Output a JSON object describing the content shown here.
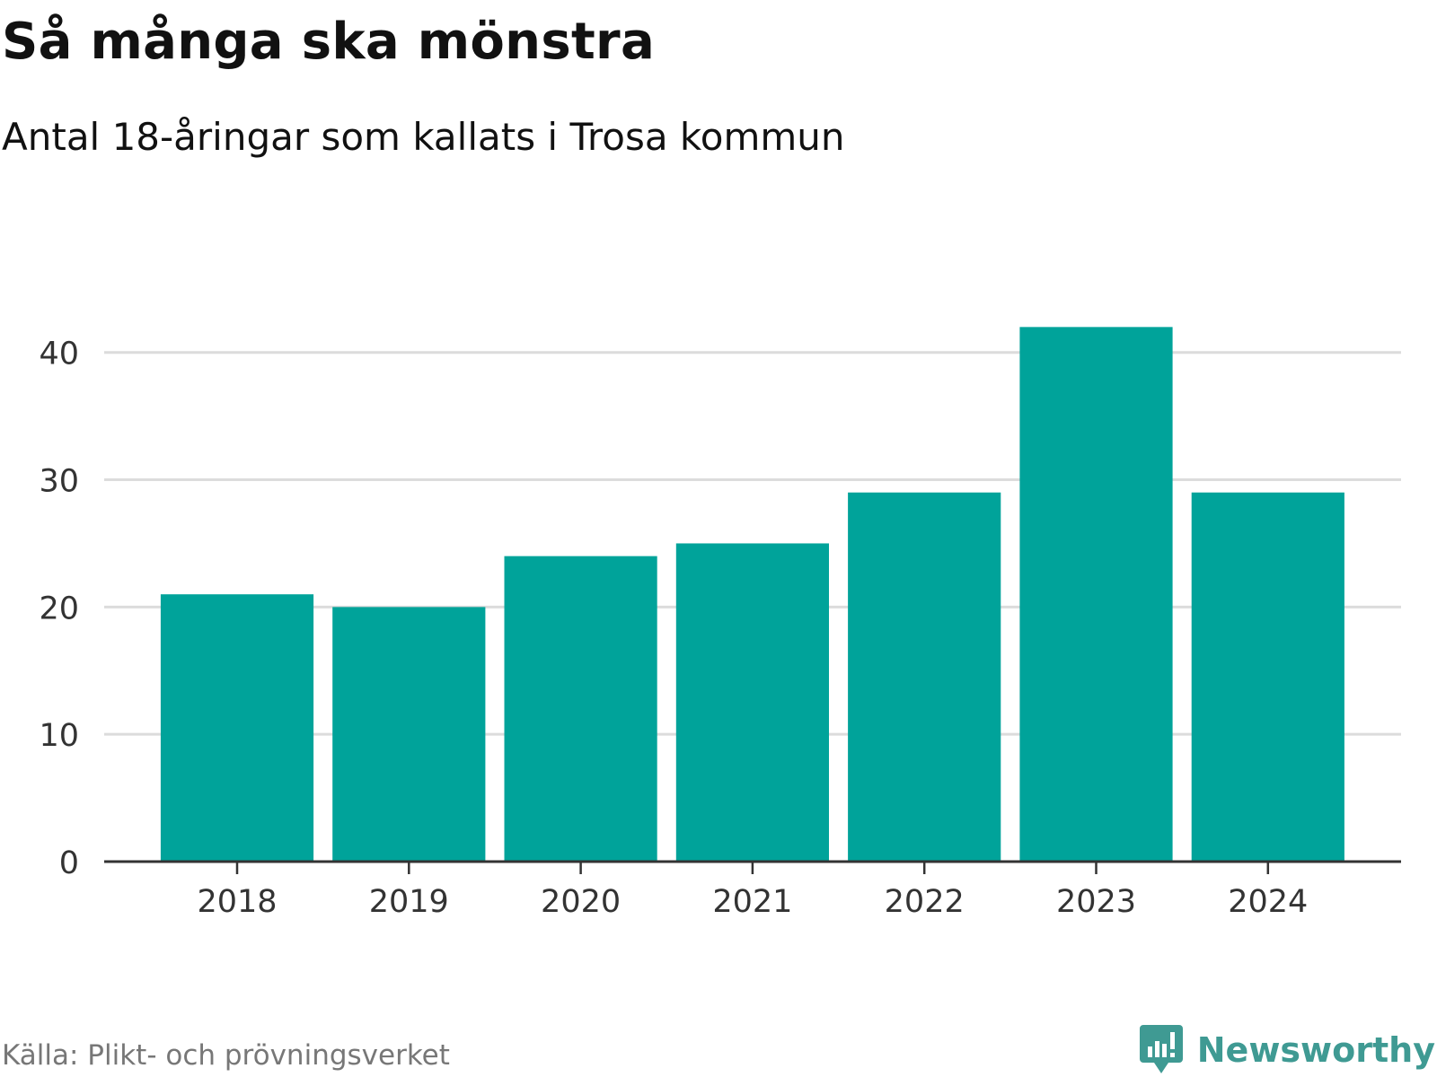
{
  "header": {
    "title": "Så många ska mönstra",
    "subtitle": "Antal 18-åringar som kallats i Trosa kommun"
  },
  "footer": {
    "source": "Källa: Plikt- och prövningsverket",
    "brand": "Newsworthy",
    "brand_icon": "newsworthy-logo-icon"
  },
  "colors": {
    "bar": "#00a39a",
    "grid": "#dcdcdc",
    "axis": "#333333",
    "brand": "#3f9a93"
  },
  "chart_data": {
    "type": "bar",
    "title": "Så många ska mönstra",
    "subtitle": "Antal 18-åringar som kallats i Trosa kommun",
    "categories": [
      "2018",
      "2019",
      "2020",
      "2021",
      "2022",
      "2023",
      "2024"
    ],
    "values": [
      21,
      20,
      24,
      25,
      29,
      42,
      29
    ],
    "xlabel": "",
    "ylabel": "",
    "ylim": [
      0,
      44
    ],
    "yticks": [
      0,
      10,
      20,
      30,
      40
    ],
    "grid": true,
    "legend": "none"
  }
}
